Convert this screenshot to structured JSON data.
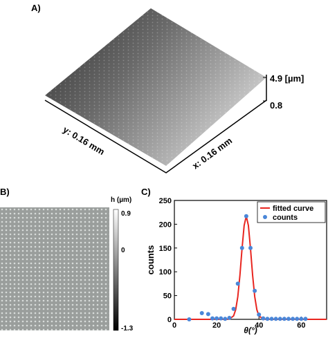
{
  "panel_a": {
    "label": "A)",
    "z_max": "4.9 [µm]",
    "z_min": "0.8",
    "y_axis": "y: 0.16 mm",
    "x_axis": "x: 0.16 mm"
  },
  "panel_b": {
    "label": "B)",
    "colorbar_title": "h (µm)",
    "colorbar_ticks": [
      "0.9",
      "0",
      "-1.3"
    ]
  },
  "chart_data": {
    "type": "scatter",
    "panel_label": "C)",
    "x_label": "θ(°)",
    "y_label": "counts",
    "xlim": [
      0,
      72
    ],
    "ylim": [
      0,
      250
    ],
    "xticks": [
      0,
      20,
      40,
      60
    ],
    "yticks": [
      0,
      50,
      100,
      150,
      200,
      250
    ],
    "legend": "upper right",
    "series": [
      {
        "name": "fitted curve",
        "kind": "line",
        "color": "#e8251f",
        "x": [
          0,
          10,
          20,
          24,
          26,
          28,
          29,
          30,
          31,
          32,
          33,
          34,
          35,
          36,
          37,
          38,
          39,
          40,
          42,
          44,
          50,
          60,
          72
        ],
        "values": [
          0,
          0,
          0,
          0,
          0.5,
          7.2,
          20.4,
          47.8,
          92.7,
          148.7,
          197.4,
          217,
          197.4,
          148.7,
          92.7,
          47.8,
          20.4,
          7.2,
          0.5,
          0,
          0,
          0,
          0
        ]
      },
      {
        "name": "counts",
        "kind": "scatter",
        "color": "#4a86d8",
        "x": [
          7,
          13,
          16,
          18,
          20,
          22,
          24,
          26,
          28,
          30,
          32,
          34,
          36,
          38,
          40,
          42,
          44,
          46,
          48,
          50,
          52,
          54,
          56,
          58,
          60,
          62
        ],
        "values": [
          0,
          13,
          11,
          2,
          2,
          2,
          1,
          3,
          22,
          75,
          150,
          217,
          150,
          60,
          10,
          2,
          1,
          1,
          1,
          1,
          1,
          1,
          1,
          1,
          1,
          1
        ]
      }
    ]
  }
}
